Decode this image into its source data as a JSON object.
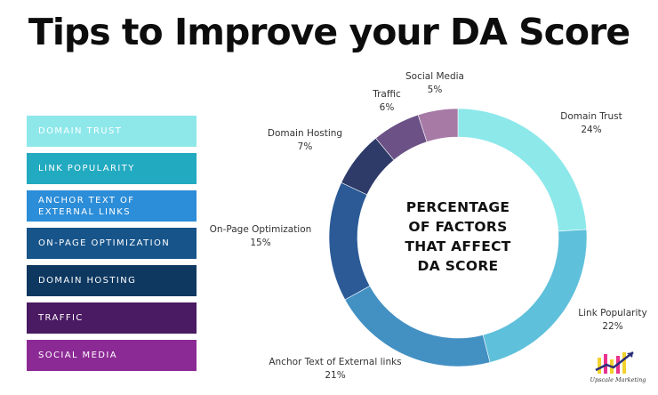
{
  "title": "Tips to Improve your DA Score",
  "center_label": [
    "PERCENTAGE",
    "OF FACTORS",
    "THAT AFFECT",
    "DA SCORE"
  ],
  "legend": [
    {
      "label": "DOMAIN TRUST",
      "color": "#8EE8EA"
    },
    {
      "label": "LINK POPULARITY",
      "color": "#22AAC0"
    },
    {
      "label": "ANCHOR TEXT OF EXTERNAL LINKS",
      "color": "#2C8DD8"
    },
    {
      "label": "ON-PAGE OPTIMIZATION",
      "color": "#17548A"
    },
    {
      "label": "DOMAIN HOSTING",
      "color": "#0E3860"
    },
    {
      "label": "TRAFFIC",
      "color": "#4A1A62"
    },
    {
      "label": "SOCIAL MEDIA",
      "color": "#8C2A95"
    }
  ],
  "chart_data": {
    "type": "pie",
    "style": "donut",
    "title": "PERCENTAGE OF FACTORS THAT AFFECT DA SCORE",
    "categories": [
      "Domain Trust",
      "Link Popularity",
      "Anchor Text of External links",
      "On-Page Optimization",
      "Domain Hosting",
      "Traffic",
      "Social Media"
    ],
    "values": [
      24,
      22,
      21,
      15,
      7,
      6,
      5
    ],
    "value_labels": [
      "24%",
      "22%",
      "21%",
      "15%",
      "7%",
      "6%",
      "5%"
    ],
    "colors": [
      "#8DE8EA",
      "#5EC0DB",
      "#4390C3",
      "#2B5A97",
      "#2E3B68",
      "#6B5186",
      "#A77AA6"
    ]
  },
  "logo": {
    "text": "Upscale Marketing",
    "colors": [
      "#F2D22E",
      "#E8328C",
      "#2B2D7A"
    ]
  }
}
